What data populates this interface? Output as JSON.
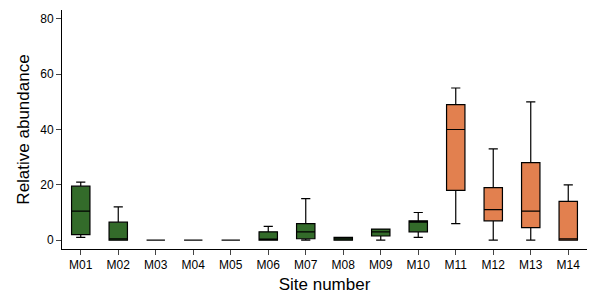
{
  "chart_data": {
    "type": "box",
    "x_label": "Site number",
    "y_label": "Relative abundance",
    "categories": [
      "M01",
      "M02",
      "M03",
      "M04",
      "M05",
      "M06",
      "M07",
      "M08",
      "M09",
      "M10",
      "M11",
      "M12",
      "M13",
      "M14"
    ],
    "lower": [
      1,
      0,
      0,
      0,
      0,
      0,
      0,
      0,
      0,
      1,
      6,
      0,
      0,
      0
    ],
    "q1": [
      2,
      0,
      0,
      0,
      0,
      0,
      0.5,
      0,
      1.5,
      3,
      18,
      7,
      4.5,
      0
    ],
    "median": [
      10.5,
      0.5,
      0,
      0,
      0,
      0,
      3,
      0.5,
      3,
      6.5,
      40,
      11,
      10.5,
      0.5
    ],
    "q3": [
      19.5,
      6.5,
      0,
      0,
      0,
      3,
      6,
      1,
      4,
      7,
      49,
      19,
      28,
      14
    ],
    "upper": [
      21,
      12,
      0,
      0,
      0,
      5,
      15,
      1,
      4,
      10,
      55,
      33,
      50,
      20
    ],
    "colors": [
      "#336b2a",
      "#336b2a",
      "#336b2a",
      "#336b2a",
      "#336b2a",
      "#336b2a",
      "#336b2a",
      "#336b2a",
      "#336b2a",
      "#336b2a",
      "#e2804f",
      "#e2804f",
      "#e2804f",
      "#e2804f"
    ],
    "ylim": [
      -3.2,
      83.2
    ],
    "yticks": [
      0,
      20,
      40,
      60,
      80
    ],
    "grid": false
  }
}
